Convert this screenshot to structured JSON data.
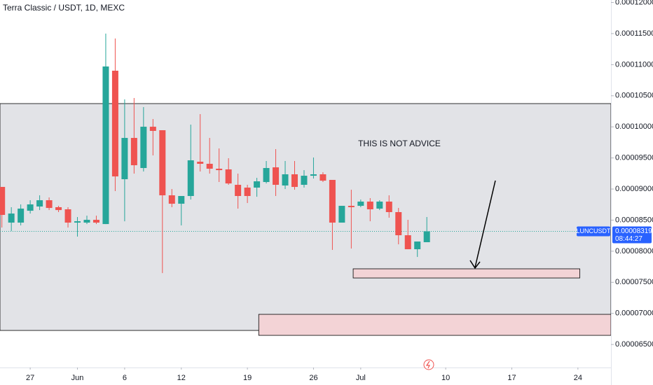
{
  "chart_data": {
    "type": "candlestick",
    "title": "Terra Classic / USDT, 1D, MEXC",
    "annotation": "THIS IS NOT ADVICE",
    "symbol": "LUNCUSDT",
    "countdown": "08:44:27",
    "last_price": {
      "value": 8.319e-05,
      "label": "0.00008319"
    },
    "up_color": "#26a69a",
    "down_color": "#ef5350",
    "x": [
      0,
      1,
      2,
      3,
      4,
      5,
      6,
      7,
      8,
      9,
      10,
      11,
      12,
      13,
      14,
      15,
      16,
      17,
      18,
      19,
      20,
      21,
      22,
      23,
      24,
      25,
      26,
      27,
      28,
      29,
      30,
      31,
      32,
      33,
      34,
      35,
      36,
      37,
      38,
      39,
      40,
      41,
      42,
      43,
      44,
      45
    ],
    "open": [
      9.034e-05,
      8.46e-05,
      8.46e-05,
      8.651e-05,
      8.719e-05,
      8.82e-05,
      8.708e-05,
      8.674e-05,
      8.46e-05,
      8.46e-05,
      8.505e-05,
      8.437e-05,
      0.00010903,
      9.158e-05,
      9.822e-05,
      9.338e-05,
      0.00010002,
      9.946e-05,
      8.899e-05,
      8.764e-05,
      8.888e-05,
      9.439e-05,
      9.406e-05,
      9.327e-05,
      9.316e-05,
      9.068e-05,
      9.023e-05,
      9.023e-05,
      9.113e-05,
      9.349e-05,
      9.057e-05,
      9.237e-05,
      9.068e-05,
      9.214e-05,
      9.237e-05,
      9.147e-05,
      8.46e-05,
      8.73e-05,
      8.73e-05,
      8.798e-05,
      8.685e-05,
      8.798e-05,
      8.629e-05,
      8.257e-05,
      8.032e-05,
      8.145e-05
    ],
    "high": [
      9.034e-05,
      8.708e-05,
      8.753e-05,
      8.82e-05,
      8.899e-05,
      8.865e-05,
      8.73e-05,
      8.708e-05,
      8.55e-05,
      8.572e-05,
      8.572e-05,
      0.000115,
      0.00011421,
      0.00010442,
      0.00010464,
      0.00010318,
      0.00010126,
      9.946e-05,
      9e-05,
      8.888e-05,
      0.00010036,
      0.00010205,
      9.822e-05,
      9.653e-05,
      9.496e-05,
      9.248e-05,
      9.068e-05,
      9.18e-05,
      9.451e-05,
      9.642e-05,
      9.451e-05,
      9.451e-05,
      9.304e-05,
      9.507e-05,
      9.27e-05,
      9.147e-05,
      8.73e-05,
      8.989e-05,
      8.831e-05,
      8.854e-05,
      8.82e-05,
      8.899e-05,
      8.696e-05,
      8.505e-05,
      8.156e-05,
      8.55e-05
    ],
    "low": [
      8.381e-05,
      8.325e-05,
      8.415e-05,
      8.606e-05,
      8.662e-05,
      8.662e-05,
      8.629e-05,
      8.381e-05,
      8.235e-05,
      8.437e-05,
      8.437e-05,
      8.437e-05,
      8.967e-05,
      8.482e-05,
      9.248e-05,
      9.282e-05,
      9.541e-05,
      7.649e-05,
      8.708e-05,
      8.415e-05,
      8.831e-05,
      9.282e-05,
      9.248e-05,
      9.113e-05,
      9.068e-05,
      8.685e-05,
      8.775e-05,
      8.876e-05,
      9.09e-05,
      8.888e-05,
      9e-05,
      8.989e-05,
      9.023e-05,
      9.169e-05,
      9.113e-05,
      8.021e-05,
      8.46e-05,
      8.043e-05,
      8.708e-05,
      8.482e-05,
      8.662e-05,
      8.539e-05,
      8.111e-05,
      8.032e-05,
      7.908e-05,
      8.145e-05
    ],
    "close": [
      8.584e-05,
      8.606e-05,
      8.685e-05,
      8.753e-05,
      8.82e-05,
      8.696e-05,
      8.662e-05,
      8.46e-05,
      8.482e-05,
      8.505e-05,
      8.46e-05,
      0.00010971,
      9.203e-05,
      9.822e-05,
      9.383e-05,
      0.00010002,
      9.935e-05,
      8.899e-05,
      8.764e-05,
      8.888e-05,
      9.462e-05,
      9.406e-05,
      9.327e-05,
      9.304e-05,
      9.09e-05,
      8.888e-05,
      8.888e-05,
      9.124e-05,
      9.338e-05,
      9.068e-05,
      9.237e-05,
      9.034e-05,
      9.214e-05,
      9.237e-05,
      9.135e-05,
      8.46e-05,
      8.73e-05,
      8.708e-05,
      8.798e-05,
      8.674e-05,
      8.798e-05,
      8.629e-05,
      8.257e-05,
      8.032e-05,
      8.156e-05,
      8.319e-05
    ],
    "zones": [
      {
        "x": [
          -0.2,
          64.5
        ],
        "y": [
          6.726e-05,
          0.00010374
        ],
        "color": "#e2e3e7"
      },
      {
        "x": [
          37.2,
          61.2
        ],
        "y": [
          7.57e-05,
          7.717e-05
        ],
        "color": "#f3d3d6"
      },
      {
        "x": [
          27.2,
          64.5
        ],
        "y": [
          6.647e-05,
          6.985e-05
        ],
        "color": "#f3d3d6"
      }
    ],
    "xlim": [
      -0.2,
      64.5
    ],
    "xticks": [
      {
        "value": 3,
        "label": "27"
      },
      {
        "value": 8,
        "label": "Jun"
      },
      {
        "value": 13,
        "label": "6"
      },
      {
        "value": 19,
        "label": "12"
      },
      {
        "value": 26,
        "label": "19"
      },
      {
        "value": 33,
        "label": "26"
      },
      {
        "value": 38,
        "label": "Jul"
      },
      {
        "value": 47,
        "label": "10"
      },
      {
        "value": 54,
        "label": "17"
      },
      {
        "value": 61,
        "label": "24"
      }
    ],
    "ylim": [
      6.13e-05,
      0.0001204
    ],
    "yticks": [
      {
        "value": 6.5e-05,
        "label": "0.00006500"
      },
      {
        "value": 7e-05,
        "label": "0.00007000"
      },
      {
        "value": 7.5e-05,
        "label": "0.00007500"
      },
      {
        "value": 8e-05,
        "label": "0.00008000"
      },
      {
        "value": 8.5e-05,
        "label": "0.00008500"
      },
      {
        "value": 9e-05,
        "label": "0.00009000"
      },
      {
        "value": 9.5e-05,
        "label": "0.00009500"
      },
      {
        "value": 0.0001,
        "label": "0.00010000"
      },
      {
        "value": 0.000105,
        "label": "0.00010500"
      },
      {
        "value": 0.00011,
        "label": "0.00011000"
      },
      {
        "value": 0.000115,
        "label": "0.00011500"
      },
      {
        "value": 0.00012,
        "label": "0.00012000"
      }
    ]
  }
}
